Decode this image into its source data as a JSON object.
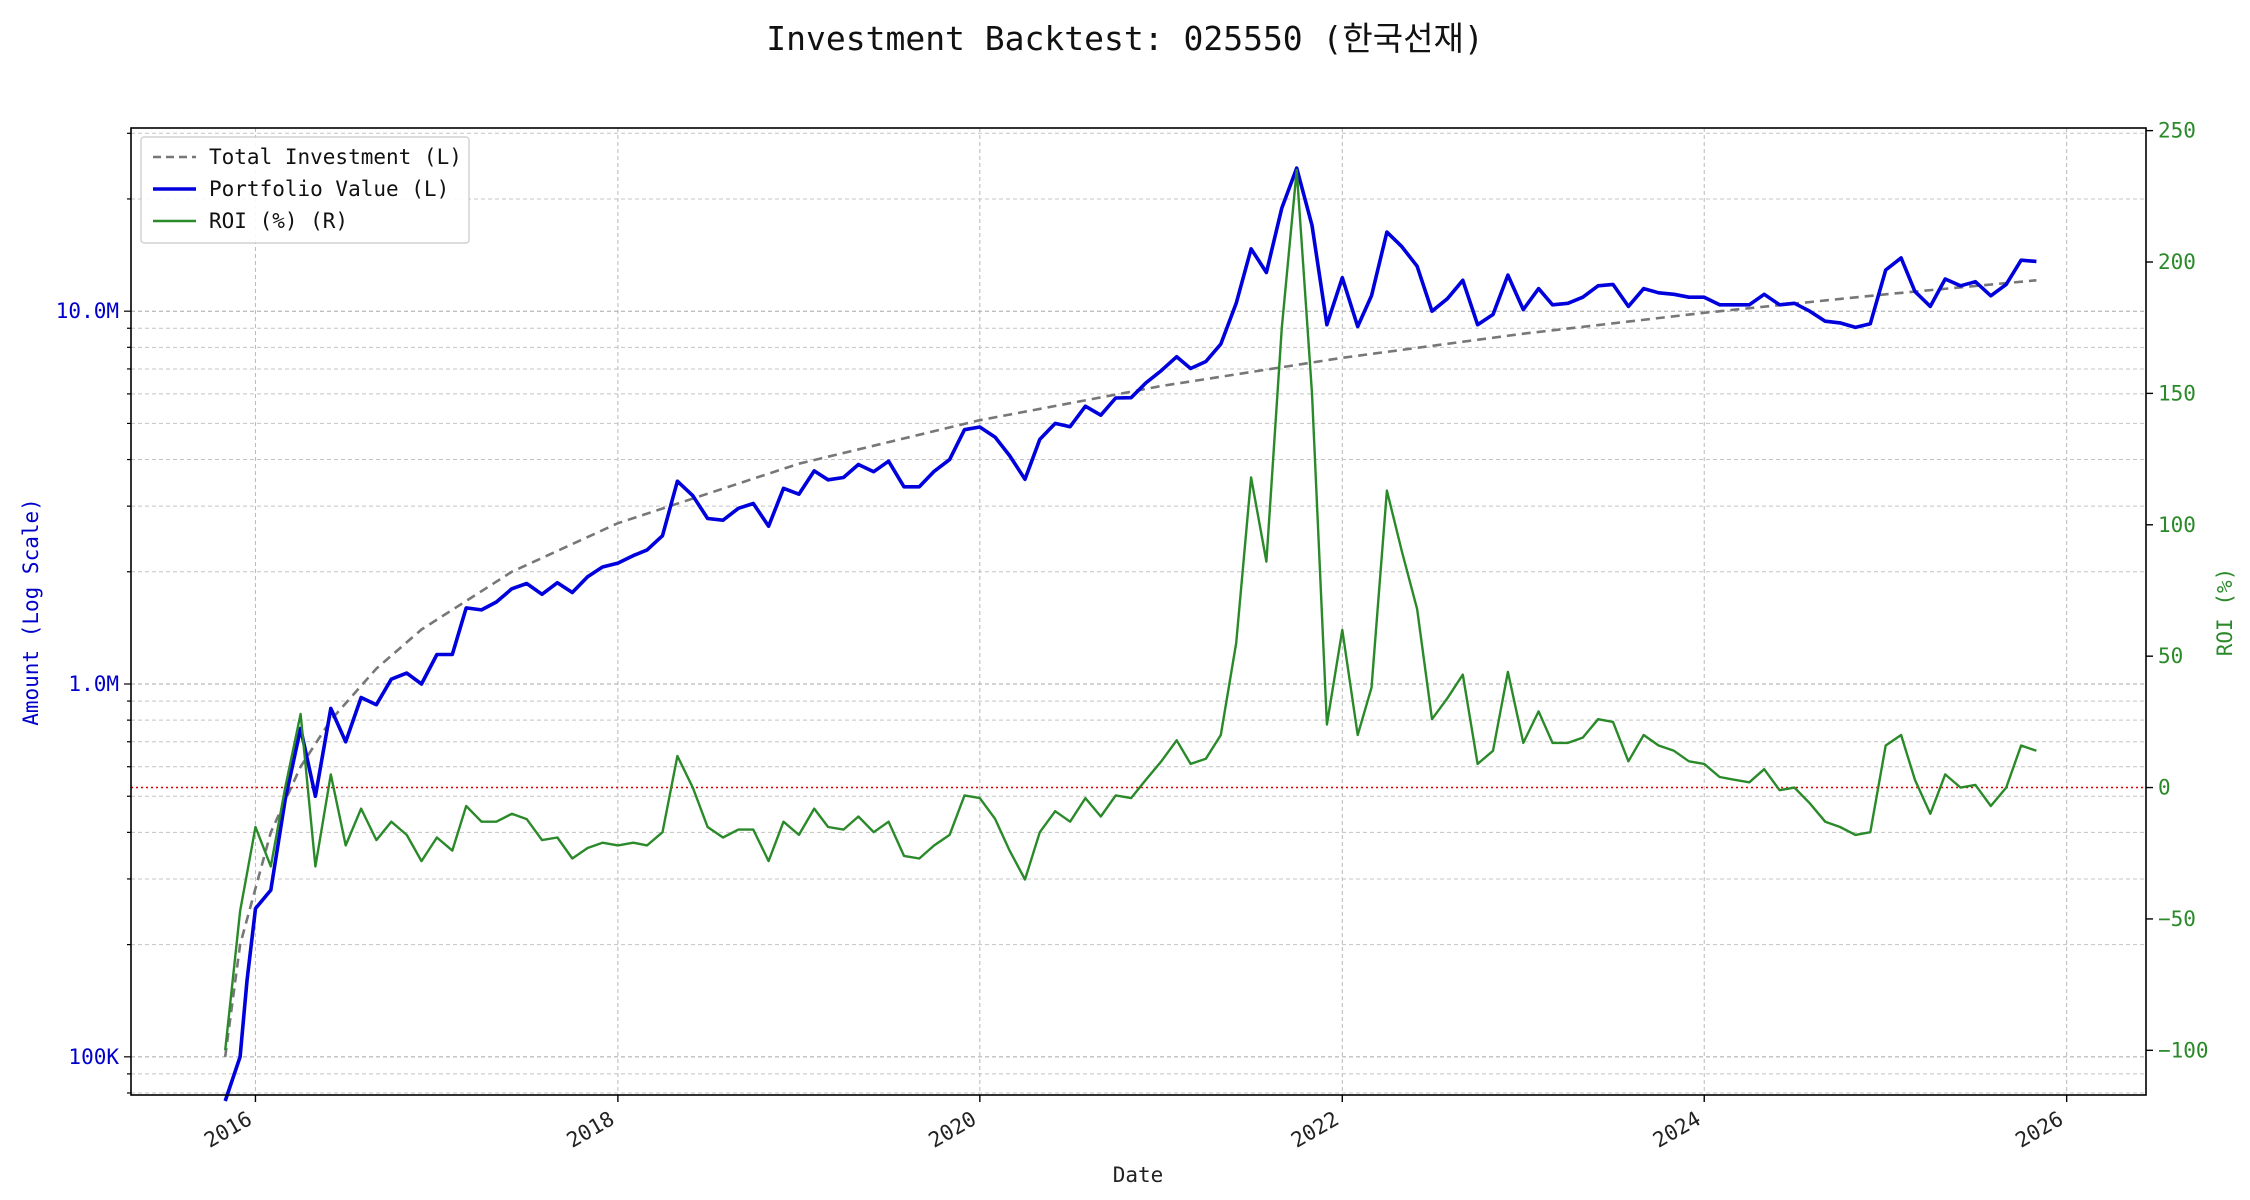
{
  "chart_data": {
    "type": "line",
    "title": "Investment Backtest: 025550 (한국선재)",
    "xlabel": "Date",
    "ylabel_left": "Amount (Log Scale)",
    "ylabel_right": "ROI (%)",
    "left_axis": {
      "scale": "log",
      "lim": [
        79000,
        31000000
      ],
      "ticks": [
        100000,
        1000000,
        10000000
      ],
      "tick_labels": [
        "100K",
        "1.0M",
        "10.0M"
      ]
    },
    "right_axis": {
      "lim": [
        -117,
        251
      ],
      "ticks": [
        -100,
        -50,
        0,
        50,
        100,
        150,
        200,
        250
      ],
      "tick_labels": [
        "−100",
        "−50",
        "0",
        "50",
        "100",
        "150",
        "200",
        "250"
      ]
    },
    "x_axis": {
      "lim": [
        "2015-04-25",
        "2026-06-10"
      ],
      "ticks": [
        "2016-01-01",
        "2018-01-01",
        "2020-01-01",
        "2022-01-01",
        "2024-01-01",
        "2026-01-01"
      ],
      "tick_labels": [
        "2016",
        "2018",
        "2020",
        "2022",
        "2024",
        "2026"
      ]
    },
    "grid": true,
    "legend_position": "upper left",
    "zero_line": {
      "y": 0,
      "color": "#dd0000",
      "style": "dotted"
    },
    "colors": {
      "investment": "#777777",
      "portfolio": "#0000dd",
      "roi": "#2a8a2a"
    },
    "series": [
      {
        "name": "Total Investment (L)",
        "axis": "left",
        "style": "dashed",
        "x": [
          "2015-11-01",
          "2015-12-01",
          "2016-02-01",
          "2016-04-01",
          "2016-06-01",
          "2016-09-01",
          "2016-12-01",
          "2017-06-01",
          "2018-01-01",
          "2019-01-01",
          "2020-01-01",
          "2021-01-01",
          "2022-01-01",
          "2023-01-01",
          "2024-01-01",
          "2025-01-01",
          "2025-11-01"
        ],
        "values": [
          100000,
          200000,
          400000,
          600000,
          800000,
          1100000,
          1400000,
          2000000,
          2700000,
          3900000,
          5100000,
          6300000,
          7500000,
          8700000,
          9900000,
          11100000,
          12100000
        ]
      },
      {
        "name": "Portfolio Value (L)",
        "axis": "left",
        "style": "solid",
        "x": [
          "2015-11-01",
          "2015-12-01",
          "2015-12-15",
          "2016-01-01",
          "2016-02-01",
          "2016-03-01",
          "2016-04-01",
          "2016-05-01",
          "2016-06-01",
          "2016-07-01",
          "2016-08-01",
          "2016-09-01",
          "2016-10-01",
          "2016-11-01",
          "2016-12-01",
          "2017-01-01",
          "2017-02-01",
          "2017-03-01",
          "2017-04-01",
          "2017-05-01",
          "2017-06-01",
          "2017-07-01",
          "2017-08-01",
          "2017-09-01",
          "2017-10-01",
          "2017-11-01",
          "2017-12-01",
          "2018-01-01",
          "2018-02-01",
          "2018-03-01",
          "2018-04-01",
          "2018-05-01",
          "2018-06-01",
          "2018-07-01",
          "2018-08-01",
          "2018-09-01",
          "2018-10-01",
          "2018-11-01",
          "2018-12-01",
          "2019-01-01",
          "2019-02-01",
          "2019-03-01",
          "2019-04-01",
          "2019-05-01",
          "2019-06-01",
          "2019-07-01",
          "2019-08-01",
          "2019-09-01",
          "2019-10-01",
          "2019-11-01",
          "2019-12-01",
          "2020-01-01",
          "2020-02-01",
          "2020-03-01",
          "2020-04-01",
          "2020-05-01",
          "2020-06-01",
          "2020-07-01",
          "2020-08-01",
          "2020-09-01",
          "2020-10-01",
          "2020-11-01",
          "2020-12-01",
          "2021-01-01",
          "2021-02-01",
          "2021-03-01",
          "2021-04-01",
          "2021-05-01",
          "2021-06-01",
          "2021-07-01",
          "2021-08-01",
          "2021-09-01",
          "2021-10-01",
          "2021-11-01",
          "2021-12-01",
          "2022-01-01",
          "2022-02-01",
          "2022-03-01",
          "2022-04-01",
          "2022-05-01",
          "2022-06-01",
          "2022-07-01",
          "2022-08-01",
          "2022-09-01",
          "2022-10-01",
          "2022-11-01",
          "2022-12-01",
          "2023-01-01",
          "2023-02-01",
          "2023-03-01",
          "2023-04-01",
          "2023-05-01",
          "2023-06-01",
          "2023-07-01",
          "2023-08-01",
          "2023-09-01",
          "2023-10-01",
          "2023-11-01",
          "2023-12-01",
          "2024-01-01",
          "2024-02-01",
          "2024-03-01",
          "2024-04-01",
          "2024-05-01",
          "2024-06-01",
          "2024-07-01",
          "2024-08-01",
          "2024-09-01",
          "2024-10-01",
          "2024-11-01",
          "2024-12-01",
          "2025-01-01",
          "2025-02-01",
          "2025-03-01",
          "2025-04-01",
          "2025-05-01",
          "2025-06-01",
          "2025-07-01",
          "2025-08-01",
          "2025-09-01",
          "2025-10-01",
          "2025-11-01"
        ],
        "values": [
          50000,
          100000,
          160000,
          250000,
          280000,
          490000,
          760000,
          500000,
          860000,
          700000,
          920000,
          880000,
          1030000,
          1070000,
          1000000,
          1200000,
          1200000,
          1600000,
          1580000,
          1660000,
          1800000,
          1860000,
          1740000,
          1870000,
          1760000,
          1940000,
          2060000,
          2110000,
          2210000,
          2290000,
          2500000,
          3500000,
          3200000,
          2780000,
          2750000,
          2960000,
          3050000,
          2650000,
          3350000,
          3230000,
          3730000,
          3530000,
          3580000,
          3880000,
          3710000,
          3960000,
          3380000,
          3380000,
          3720000,
          4000000,
          4810000,
          4890000,
          4590000,
          4100000,
          3540000,
          4530000,
          5000000,
          4900000,
          5560000,
          5260000,
          5850000,
          5860000,
          6420000,
          6930000,
          7550000,
          7020000,
          7330000,
          8160000,
          10500000,
          14700000,
          12700000,
          18900000,
          24200000,
          17000000,
          9200000,
          12300000,
          9100000,
          11000000,
          16300000,
          14900000,
          13200000,
          10000000,
          10800000,
          12100000,
          9200000,
          9800000,
          12500000,
          10100000,
          11500000,
          10400000,
          10500000,
          10900000,
          11700000,
          11800000,
          10300000,
          11500000,
          11200000,
          11100000,
          10900000,
          10900000,
          10400000,
          10400000,
          10400000,
          11100000,
          10400000,
          10500000,
          10000000,
          9400000,
          9300000,
          9050000,
          9250000,
          12900000,
          13900000,
          11300000,
          10300000,
          12200000,
          11700000,
          12000000,
          11000000,
          11800000,
          13700000,
          13600000
        ]
      },
      {
        "name": "ROI (%) (R)",
        "axis": "right",
        "style": "solid",
        "x": [
          "2015-11-01",
          "2015-12-01",
          "2016-01-01",
          "2016-02-01",
          "2016-03-01",
          "2016-04-01",
          "2016-05-01",
          "2016-06-01",
          "2016-07-01",
          "2016-08-01",
          "2016-09-01",
          "2016-10-01",
          "2016-11-01",
          "2016-12-01",
          "2017-01-01",
          "2017-02-01",
          "2017-03-01",
          "2017-04-01",
          "2017-05-01",
          "2017-06-01",
          "2017-07-01",
          "2017-08-01",
          "2017-09-01",
          "2017-10-01",
          "2017-11-01",
          "2017-12-01",
          "2018-01-01",
          "2018-02-01",
          "2018-03-01",
          "2018-04-01",
          "2018-05-01",
          "2018-06-01",
          "2018-07-01",
          "2018-08-01",
          "2018-09-01",
          "2018-10-01",
          "2018-11-01",
          "2018-12-01",
          "2019-01-01",
          "2019-02-01",
          "2019-03-01",
          "2019-04-01",
          "2019-05-01",
          "2019-06-01",
          "2019-07-01",
          "2019-08-01",
          "2019-09-01",
          "2019-10-01",
          "2019-11-01",
          "2019-12-01",
          "2020-01-01",
          "2020-02-01",
          "2020-03-01",
          "2020-04-01",
          "2020-05-01",
          "2020-06-01",
          "2020-07-01",
          "2020-08-01",
          "2020-09-01",
          "2020-10-01",
          "2020-11-01",
          "2020-12-01",
          "2021-01-01",
          "2021-02-01",
          "2021-03-01",
          "2021-04-01",
          "2021-05-01",
          "2021-06-01",
          "2021-07-01",
          "2021-08-01",
          "2021-09-01",
          "2021-10-01",
          "2021-11-01",
          "2021-12-01",
          "2022-01-01",
          "2022-02-01",
          "2022-03-01",
          "2022-04-01",
          "2022-05-01",
          "2022-06-01",
          "2022-07-01",
          "2022-08-01",
          "2022-09-01",
          "2022-10-01",
          "2022-11-01",
          "2022-12-01",
          "2023-01-01",
          "2023-02-01",
          "2023-03-01",
          "2023-04-01",
          "2023-05-01",
          "2023-06-01",
          "2023-07-01",
          "2023-08-01",
          "2023-09-01",
          "2023-10-01",
          "2023-11-01",
          "2023-12-01",
          "2024-01-01",
          "2024-02-01",
          "2024-03-01",
          "2024-04-01",
          "2024-05-01",
          "2024-06-01",
          "2024-07-01",
          "2024-08-01",
          "2024-09-01",
          "2024-10-01",
          "2024-11-01",
          "2024-12-01",
          "2025-01-01",
          "2025-02-01",
          "2025-03-01",
          "2025-04-01",
          "2025-05-01",
          "2025-06-01",
          "2025-07-01",
          "2025-08-01",
          "2025-09-01",
          "2025-10-01",
          "2025-11-01"
        ],
        "values": [
          -100,
          -47,
          -15,
          -30,
          0,
          28,
          -30,
          5,
          -22,
          -8,
          -20,
          -13,
          -18,
          -28,
          -19,
          -24,
          -7,
          -13,
          -13,
          -10,
          -12,
          -20,
          -19,
          -27,
          -23,
          -21,
          -22,
          -21,
          -22,
          -17,
          12,
          0,
          -15,
          -19,
          -16,
          -16,
          -28,
          -13,
          -18,
          -8,
          -15,
          -16,
          -11,
          -17,
          -13,
          -26,
          -27,
          -22,
          -18,
          -3,
          -4,
          -12,
          -24,
          -35,
          -17,
          -9,
          -13,
          -4,
          -11,
          -3,
          -4,
          3,
          10,
          18,
          9,
          11,
          20,
          55,
          118,
          86,
          175,
          235,
          150,
          24,
          60,
          20,
          38,
          113,
          90,
          68,
          26,
          34,
          43,
          9,
          14,
          44,
          17,
          29,
          17,
          17,
          19,
          26,
          25,
          10,
          20,
          16,
          14,
          10,
          9,
          4,
          3,
          2,
          7,
          -1,
          0,
          -6,
          -13,
          -15,
          -18,
          -17,
          16,
          20,
          3,
          -10,
          5,
          0,
          1,
          -7,
          0,
          16,
          14
        ]
      }
    ]
  }
}
